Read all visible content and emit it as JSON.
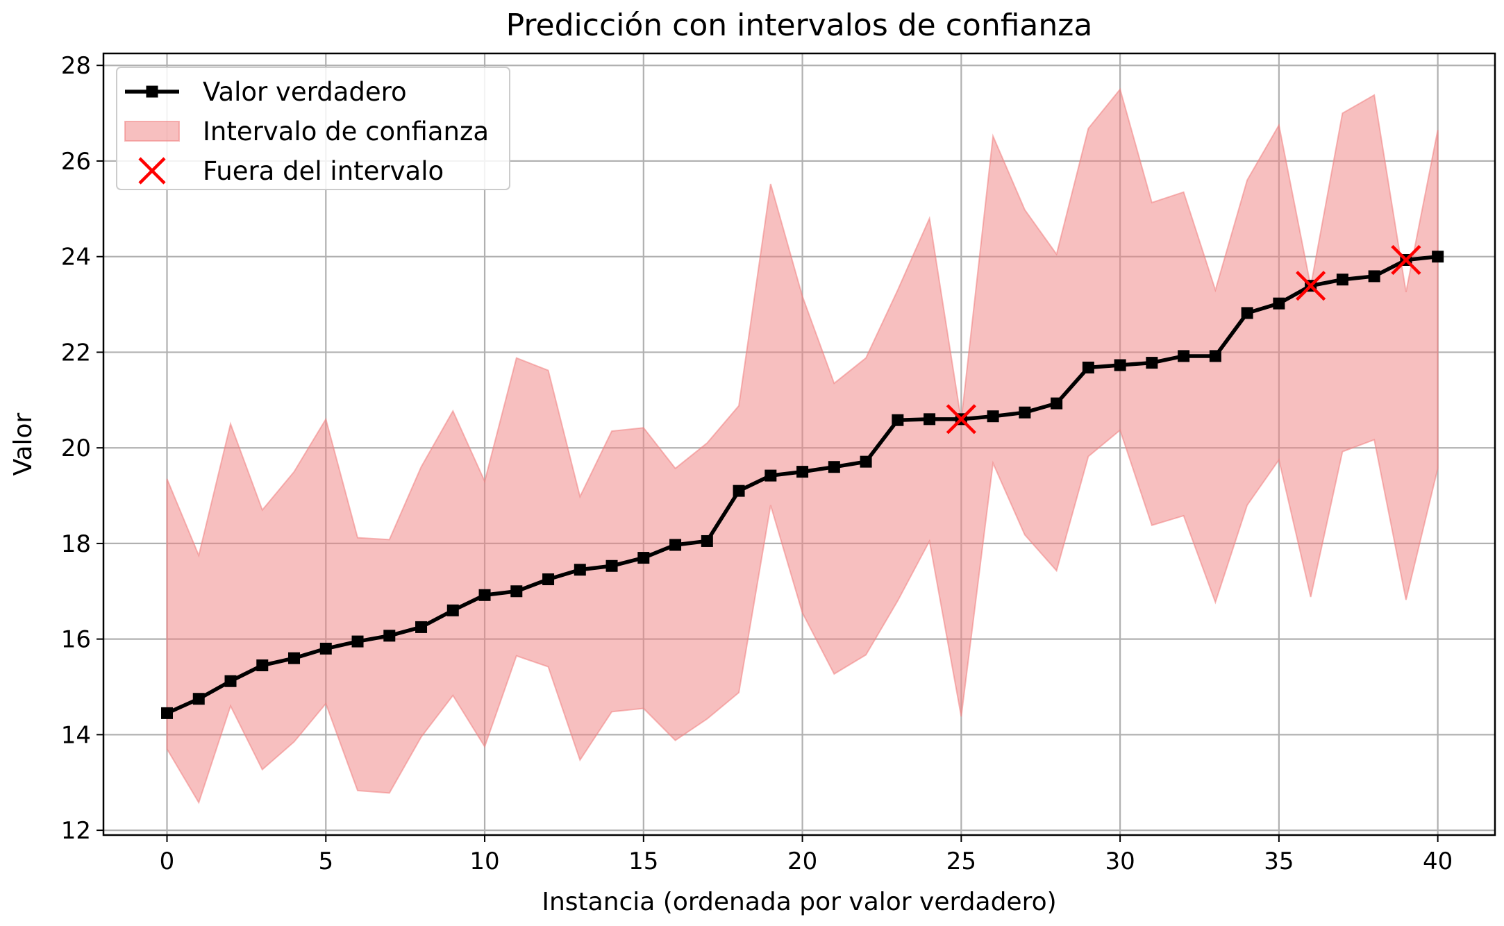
{
  "chart_data": {
    "type": "line",
    "title": "Predicción con intervalos de confianza",
    "xlabel": "Instancia (ordenada por valor verdadero)",
    "ylabel": "Valor",
    "xlim": [
      -2,
      41.8
    ],
    "ylim": [
      11.9,
      28.25
    ],
    "xticks": [
      0,
      5,
      10,
      15,
      20,
      25,
      30,
      35,
      40
    ],
    "yticks": [
      12,
      14,
      16,
      18,
      20,
      22,
      24,
      26,
      28
    ],
    "grid": true,
    "legend": {
      "position": "top-left"
    },
    "x": [
      0,
      1,
      2,
      3,
      4,
      5,
      6,
      7,
      8,
      9,
      10,
      11,
      12,
      13,
      14,
      15,
      16,
      17,
      18,
      19,
      20,
      21,
      22,
      23,
      24,
      25,
      26,
      27,
      28,
      29,
      30,
      31,
      32,
      33,
      34,
      35,
      36,
      37,
      38,
      39,
      40
    ],
    "series": [
      {
        "name": "Valor verdadero",
        "kind": "line",
        "color": "#000000",
        "marker": "square",
        "values": [
          14.45,
          14.75,
          15.12,
          15.45,
          15.6,
          15.8,
          15.95,
          16.07,
          16.25,
          16.6,
          16.92,
          17.0,
          17.25,
          17.45,
          17.53,
          17.7,
          17.97,
          18.05,
          19.1,
          19.42,
          19.5,
          19.6,
          19.71,
          20.58,
          20.6,
          20.6,
          20.66,
          20.74,
          20.93,
          21.68,
          21.73,
          21.78,
          21.92,
          21.92,
          22.82,
          23.02,
          23.39,
          23.52,
          23.59,
          23.93,
          24.0
        ]
      },
      {
        "name": "Intervalo de confianza",
        "kind": "band",
        "color": "#f08080",
        "upper": [
          19.35,
          17.75,
          20.5,
          18.7,
          19.5,
          20.6,
          18.12,
          18.08,
          19.6,
          20.77,
          19.3,
          21.88,
          21.62,
          18.98,
          20.35,
          20.42,
          19.57,
          20.1,
          20.88,
          25.52,
          23.17,
          21.35,
          21.88,
          23.3,
          24.8,
          20.57,
          26.52,
          24.98,
          24.05,
          26.68,
          27.5,
          25.13,
          25.35,
          23.3,
          25.6,
          26.75,
          23.38,
          27.0,
          27.38,
          23.26,
          26.65
        ],
        "lower": [
          13.7,
          12.58,
          14.6,
          13.27,
          13.85,
          14.65,
          12.83,
          12.78,
          13.95,
          14.82,
          13.75,
          15.65,
          15.42,
          13.47,
          14.48,
          14.55,
          13.88,
          14.33,
          14.88,
          18.8,
          16.55,
          15.27,
          15.67,
          16.8,
          18.05,
          14.38,
          19.68,
          18.18,
          17.43,
          19.82,
          20.37,
          18.38,
          18.58,
          16.77,
          18.8,
          19.75,
          16.88,
          19.92,
          20.17,
          16.82,
          19.57
        ]
      },
      {
        "name": "Fuera del intervalo",
        "kind": "scatter",
        "color": "#ff0000",
        "marker": "x",
        "x": [
          25,
          36,
          39
        ],
        "values": [
          20.6,
          23.39,
          23.93
        ]
      }
    ]
  }
}
